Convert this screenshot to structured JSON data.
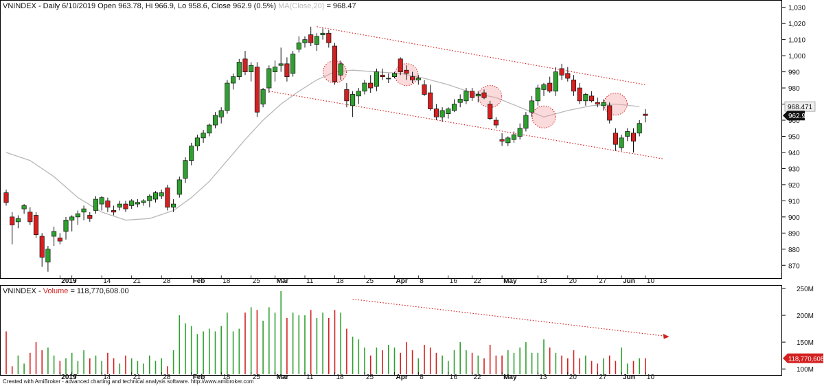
{
  "header": {
    "price_prefix": "VNINDEX - Daily 6/10/2019 Open 963.78, Hi 966.9, Lo 958.6, Close 962.9 (0.5%)",
    "ma_label": "MA(Close,20)",
    "ma_value_text": " = 968.47",
    "volume_prefix": "VNINDEX - ",
    "volume_label": "Volume",
    "volume_value_text": " = 118,770,608.00"
  },
  "footer": "Created with AmiBroker - advanced charting and technical analysis software. http://www.amibroker.com",
  "chart_data": [
    {
      "type": "candlestick",
      "symbol": "VNINDEX",
      "ylim": [
        865,
        1032
      ],
      "y_ticks": [
        "870",
        "880",
        "890",
        "900",
        "910",
        "920",
        "930",
        "940",
        "950",
        "960",
        "970",
        "980",
        "990",
        "1,000",
        "1,010",
        "1,020",
        "1,030"
      ],
      "x_tick_labels": [
        {
          "i": 9,
          "label": "2019",
          "bold": true
        },
        {
          "i": 11,
          "label": "7"
        },
        {
          "i": 16,
          "label": "14"
        },
        {
          "i": 21,
          "label": "21"
        },
        {
          "i": 26,
          "label": "28"
        },
        {
          "i": 31,
          "label": "Feb",
          "bold": true
        },
        {
          "i": 36,
          "label": "18"
        },
        {
          "i": 41,
          "label": "25"
        },
        {
          "i": 45,
          "label": "Mar",
          "bold": true
        },
        {
          "i": 50,
          "label": "11"
        },
        {
          "i": 55,
          "label": "18"
        },
        {
          "i": 60,
          "label": "25"
        },
        {
          "i": 65,
          "label": "Apr",
          "bold": true
        },
        {
          "i": 69,
          "label": "8"
        },
        {
          "i": 74,
          "label": "16"
        },
        {
          "i": 78,
          "label": "22"
        },
        {
          "i": 83,
          "label": "May",
          "bold": true
        },
        {
          "i": 89,
          "label": "13"
        },
        {
          "i": 94,
          "label": "20"
        },
        {
          "i": 99,
          "label": "27"
        },
        {
          "i": 103,
          "label": "Jun",
          "bold": true
        },
        {
          "i": 107,
          "label": "10"
        }
      ],
      "ma_last_label": "968.471",
      "close_last_label": "962.9",
      "candles": [
        [
          915,
          917,
          907,
          909
        ],
        [
          900,
          903,
          883,
          895
        ],
        [
          897,
          901,
          893,
          899
        ],
        [
          905,
          908,
          902,
          907
        ],
        [
          903,
          906,
          895,
          897
        ],
        [
          901,
          903,
          887,
          889
        ],
        [
          888,
          890,
          869,
          875
        ],
        [
          872,
          882,
          866,
          880
        ],
        [
          888,
          894,
          882,
          891
        ],
        [
          887,
          890,
          883,
          885
        ],
        [
          891,
          900,
          886,
          898
        ],
        [
          898,
          901,
          891,
          900
        ],
        [
          900,
          904,
          895,
          902
        ],
        [
          903,
          907,
          898,
          905
        ],
        [
          901,
          903,
          897,
          899
        ],
        [
          904,
          913,
          902,
          911
        ],
        [
          908,
          913,
          904,
          912
        ],
        [
          910,
          912,
          903,
          906
        ],
        [
          904,
          907,
          901,
          903
        ],
        [
          906,
          910,
          904,
          908
        ],
        [
          908,
          910,
          903,
          905
        ],
        [
          907,
          911,
          905,
          910
        ],
        [
          908,
          911,
          906,
          909
        ],
        [
          909,
          911,
          907,
          910
        ],
        [
          910,
          914,
          906,
          913
        ],
        [
          911,
          916,
          909,
          915
        ],
        [
          913,
          917,
          911,
          915
        ],
        [
          918,
          920,
          904,
          906
        ],
        [
          906,
          911,
          903,
          908
        ],
        [
          914,
          925,
          912,
          923
        ],
        [
          924,
          937,
          921,
          935
        ],
        [
          935,
          946,
          932,
          944
        ],
        [
          944,
          951,
          941,
          949
        ],
        [
          949,
          954,
          946,
          952
        ],
        [
          952,
          958,
          950,
          957
        ],
        [
          957,
          965,
          955,
          963
        ],
        [
          962,
          968,
          958,
          966
        ],
        [
          966,
          985,
          964,
          983
        ],
        [
          983,
          989,
          979,
          987
        ],
        [
          987,
          998,
          985,
          996
        ],
        [
          998,
          1003,
          988,
          990
        ],
        [
          990,
          996,
          984,
          994
        ],
        [
          993,
          996,
          962,
          965
        ],
        [
          970,
          980,
          968,
          979
        ],
        [
          980,
          994,
          977,
          992
        ],
        [
          990,
          997,
          984,
          993
        ],
        [
          994,
          1005,
          990,
          995
        ],
        [
          995,
          999,
          984,
          987
        ],
        [
          989,
          1003,
          987,
          1001
        ],
        [
          1004,
          1012,
          1002,
          1008
        ],
        [
          1008,
          1012,
          1005,
          1010
        ],
        [
          1013,
          1018,
          1006,
          1008
        ],
        [
          1007,
          1014,
          1003,
          1012
        ],
        [
          1013,
          1017,
          1010,
          1014
        ],
        [
          1014,
          1016,
          1005,
          1008
        ],
        [
          1006,
          1008,
          982,
          984
        ],
        [
          988,
          997,
          985,
          995
        ],
        [
          979,
          983,
          968,
          972
        ],
        [
          969,
          978,
          962,
          976
        ],
        [
          975,
          980,
          970,
          978
        ],
        [
          978,
          985,
          976,
          983
        ],
        [
          983,
          988,
          977,
          980
        ],
        [
          981,
          992,
          978,
          990
        ],
        [
          988,
          992,
          985,
          987
        ],
        [
          986,
          989,
          983,
          986
        ],
        [
          987,
          990,
          986,
          989
        ],
        [
          998,
          999,
          988,
          990
        ],
        [
          991,
          994,
          985,
          989
        ],
        [
          987,
          990,
          983,
          985
        ],
        [
          985,
          988,
          982,
          986
        ],
        [
          982,
          985,
          975,
          976
        ],
        [
          977,
          982,
          966,
          967
        ],
        [
          967,
          970,
          960,
          962
        ],
        [
          962,
          968,
          959,
          966
        ],
        [
          964,
          968,
          961,
          967
        ],
        [
          966,
          973,
          965,
          970
        ],
        [
          971,
          976,
          968,
          973
        ],
        [
          972,
          980,
          970,
          978
        ],
        [
          978,
          980,
          972,
          974
        ],
        [
          975,
          978,
          971,
          976
        ],
        [
          977,
          979,
          973,
          974
        ],
        [
          970,
          972,
          960,
          961
        ],
        [
          960,
          962,
          955,
          957
        ],
        [
          948,
          952,
          944,
          947
        ],
        [
          946,
          950,
          944,
          949
        ],
        [
          948,
          953,
          946,
          951
        ],
        [
          950,
          958,
          948,
          955
        ],
        [
          955,
          965,
          953,
          963
        ],
        [
          965,
          975,
          962,
          972
        ],
        [
          972,
          982,
          969,
          980
        ],
        [
          979,
          983,
          975,
          982
        ],
        [
          983,
          987,
          977,
          978
        ],
        [
          978,
          993,
          975,
          990
        ],
        [
          992,
          995,
          985,
          988
        ],
        [
          989,
          993,
          984,
          986
        ],
        [
          985,
          988,
          975,
          978
        ],
        [
          980,
          983,
          970,
          972
        ],
        [
          972,
          977,
          969,
          976
        ],
        [
          975,
          978,
          971,
          972
        ],
        [
          971,
          974,
          968,
          970
        ],
        [
          969,
          973,
          966,
          971
        ],
        [
          969,
          971,
          958,
          960
        ],
        [
          952,
          955,
          941,
          945
        ],
        [
          943,
          951,
          941,
          949
        ],
        [
          950,
          955,
          947,
          953
        ],
        [
          952,
          955,
          940,
          947
        ],
        [
          952,
          960,
          950,
          958
        ],
        [
          963.78,
          966.9,
          958.6,
          962.9
        ]
      ],
      "moving_average": {
        "name": "MA(Close,20)",
        "values": [
          [
            0,
            940
          ],
          [
            4,
            935
          ],
          [
            8,
            925
          ],
          [
            12,
            912
          ],
          [
            16,
            903
          ],
          [
            20,
            898
          ],
          [
            24,
            899
          ],
          [
            28,
            904
          ],
          [
            31,
            912
          ],
          [
            34,
            922
          ],
          [
            37,
            935
          ],
          [
            40,
            948
          ],
          [
            43,
            960
          ],
          [
            46,
            970
          ],
          [
            49,
            978
          ],
          [
            52,
            985
          ],
          [
            55,
            990
          ],
          [
            58,
            991
          ],
          [
            62,
            990
          ],
          [
            66,
            989
          ],
          [
            70,
            986
          ],
          [
            74,
            982
          ],
          [
            78,
            977
          ],
          [
            82,
            974
          ],
          [
            86,
            968
          ],
          [
            90,
            962
          ],
          [
            94,
            966
          ],
          [
            98,
            969
          ],
          [
            102,
            970
          ],
          [
            106,
            968.47
          ]
        ]
      },
      "channel_lines": [
        {
          "from": [
            52,
            1018
          ],
          "to": [
            107,
            982
          ]
        },
        {
          "from": [
            44,
            978
          ],
          "to": [
            110,
            936
          ]
        }
      ]
    },
    {
      "type": "bar",
      "title": "VNINDEX - Volume = 118,770,608.00",
      "ylim": [
        90,
        250
      ],
      "y_ticks": [
        "100M",
        "150M",
        "200M",
        "250M"
      ],
      "last_value_label": "118,770,608",
      "volumes": [
        170,
        105,
        125,
        110,
        130,
        150,
        135,
        140,
        125,
        115,
        120,
        130,
        115,
        135,
        120,
        125,
        115,
        130,
        120,
        110,
        125,
        120,
        115,
        110,
        125,
        115,
        120,
        105,
        135,
        200,
        185,
        180,
        165,
        170,
        175,
        170,
        180,
        205,
        170,
        175,
        205,
        215,
        210,
        190,
        215,
        205,
        245,
        195,
        205,
        200,
        200,
        210,
        195,
        205,
        195,
        210,
        205,
        175,
        160,
        155,
        140,
        125,
        140,
        135,
        145,
        140,
        130,
        150,
        135,
        120,
        145,
        140,
        130,
        125,
        115,
        135,
        150,
        135,
        130,
        125,
        120,
        145,
        125,
        125,
        135,
        130,
        140,
        150,
        130,
        130,
        155,
        140,
        130,
        125,
        120,
        135,
        120,
        125,
        115,
        110,
        120,
        125,
        115,
        140,
        110,
        115,
        120,
        120
      ],
      "trend_arrow": {
        "from": [
          58,
          230
        ],
        "to": [
          111,
          160
        ]
      }
    }
  ]
}
